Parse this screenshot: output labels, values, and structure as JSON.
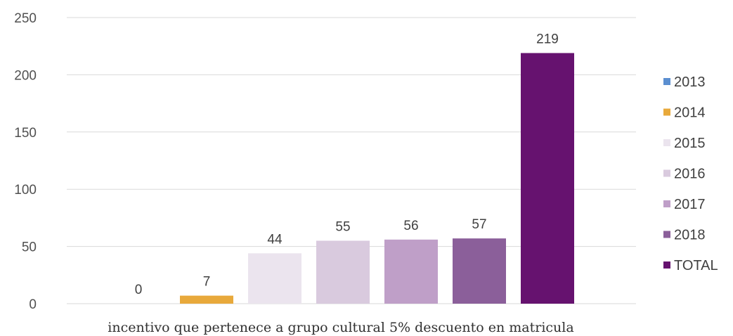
{
  "chart_data": {
    "type": "bar",
    "categories": [
      "incentivo que pertenece a grupo cultural 5% descuento en matricula"
    ],
    "series": [
      {
        "name": "2013",
        "values": [
          0
        ],
        "color": "#5b8fd0"
      },
      {
        "name": "2014",
        "values": [
          7
        ],
        "color": "#e8a93b"
      },
      {
        "name": "2015",
        "values": [
          44
        ],
        "color": "#ebe4ee"
      },
      {
        "name": "2016",
        "values": [
          55
        ],
        "color": "#d9cade"
      },
      {
        "name": "2017",
        "values": [
          56
        ],
        "color": "#bf9fc8"
      },
      {
        "name": "2018",
        "values": [
          57
        ],
        "color": "#8b5f9a"
      },
      {
        "name": "TOTAL",
        "values": [
          219
        ],
        "color": "#66126f"
      }
    ],
    "yticks": [
      0,
      50,
      100,
      150,
      200,
      250
    ],
    "ylim": [
      0,
      250
    ],
    "title": "",
    "xlabel": "",
    "ylabel": "",
    "grid": true,
    "legend": "right"
  }
}
